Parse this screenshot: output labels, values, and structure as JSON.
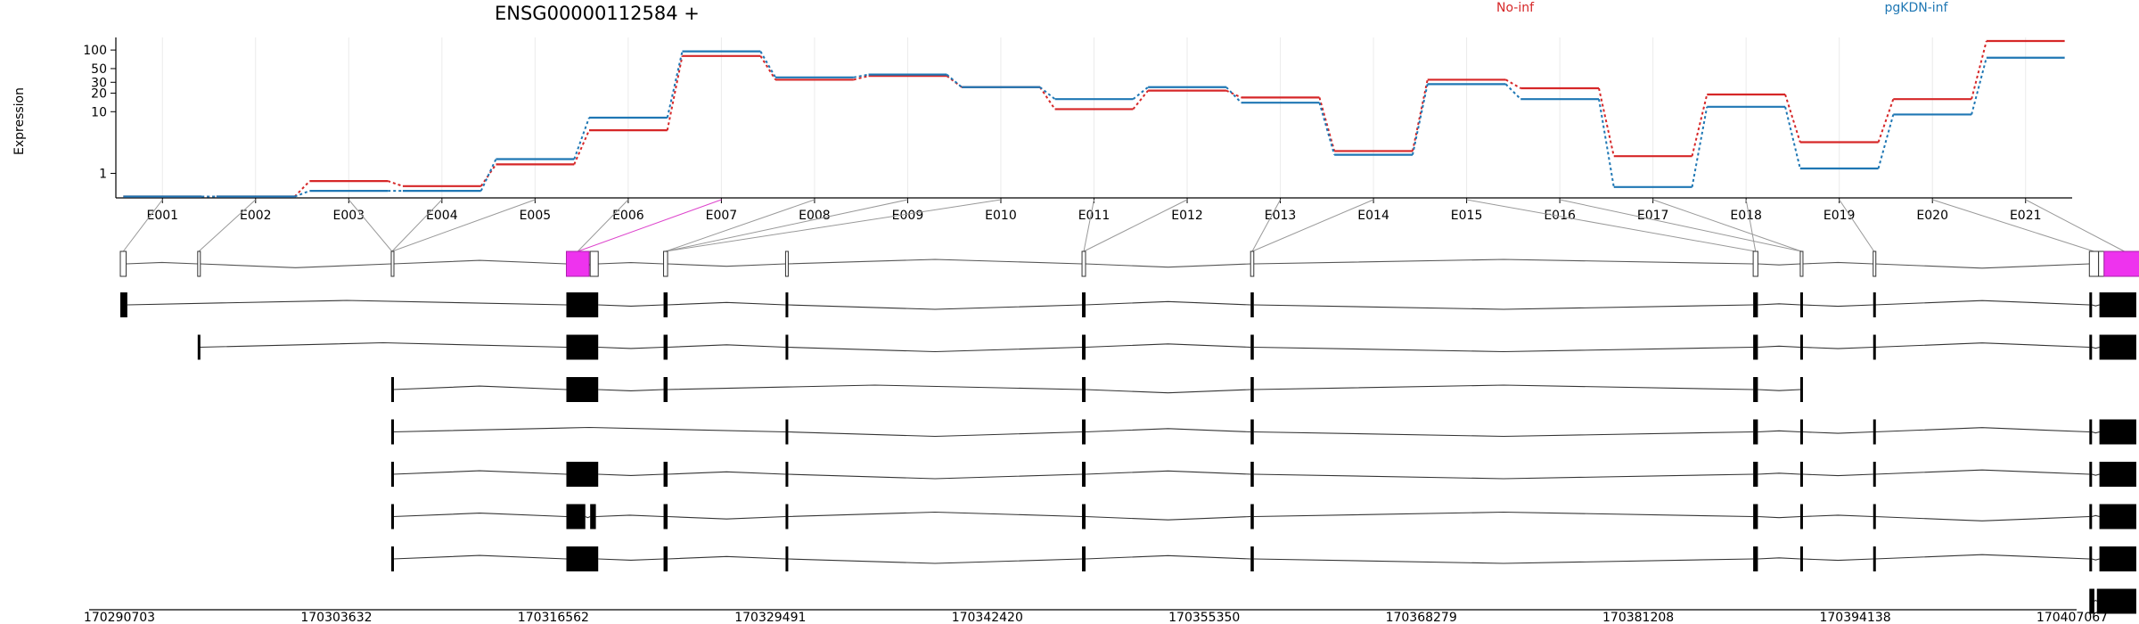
{
  "chart_data": {
    "type": "line",
    "title": "ENSG00000112584 +",
    "ylabel": "Expression",
    "yscale": "log",
    "ylim": [
      0.4,
      160
    ],
    "yticks": [
      1,
      10,
      20,
      30,
      50,
      100
    ],
    "grid": "x",
    "legend_placement": "top",
    "categories": [
      "E001",
      "E002",
      "E003",
      "E004",
      "E005",
      "E006",
      "E007",
      "E008",
      "E009",
      "E010",
      "E011",
      "E012",
      "E013",
      "E014",
      "E015",
      "E016",
      "E017",
      "E018",
      "E019",
      "E020",
      "E021"
    ],
    "series": [
      {
        "name": "No-inf",
        "color": "#d62728",
        "values": [
          0.42,
          0.42,
          0.75,
          0.62,
          1.4,
          5.0,
          80,
          33,
          38,
          25,
          11,
          22,
          17,
          2.3,
          33,
          24,
          1.9,
          19,
          3.2,
          16,
          140
        ]
      },
      {
        "name": "pgKDN-inf",
        "color": "#1f77b4",
        "values": [
          0.42,
          0.42,
          0.52,
          0.52,
          1.7,
          8.0,
          95,
          36,
          40,
          25,
          16,
          25,
          14,
          2.0,
          28,
          16,
          0.6,
          12,
          1.2,
          9,
          75
        ]
      }
    ],
    "genomic_axis": {
      "ticks": [
        "170290703",
        "170303632",
        "170316562",
        "170329491",
        "170342420",
        "170355350",
        "170368279",
        "170381208",
        "170394138",
        "170407067"
      ],
      "start": 170290703,
      "end": 170407067
    },
    "exon_bins": [
      [
        170290703,
        170291050
      ],
      [
        170295320,
        170295450
      ],
      [
        170306870,
        170306960
      ],
      [
        170317320,
        170318680
      ],
      [
        170318740,
        170319220
      ],
      [
        170323120,
        170323360
      ],
      [
        170330400,
        170330550
      ],
      [
        170348090,
        170348300
      ],
      [
        170358150,
        170358340
      ],
      [
        170388140,
        170388420
      ],
      [
        170390950,
        170391100
      ],
      [
        170395300,
        170395400
      ],
      [
        170408200,
        170408750
      ],
      [
        170408750,
        170409080
      ],
      [
        170409080,
        170411500
      ]
    ],
    "highlighted_exon_bins": [
      3,
      14
    ],
    "exon_bin_links": [
      [
        0,
        0
      ],
      [
        1,
        1
      ],
      [
        2,
        2
      ],
      [
        3,
        2
      ],
      [
        4,
        2
      ],
      [
        5,
        3
      ],
      [
        6,
        3
      ],
      [
        7,
        5
      ],
      [
        8,
        5
      ],
      [
        9,
        5
      ],
      [
        10,
        7
      ],
      [
        11,
        7
      ],
      [
        12,
        8
      ],
      [
        13,
        8
      ],
      [
        14,
        9
      ],
      [
        15,
        10
      ],
      [
        16,
        10
      ],
      [
        17,
        9
      ],
      [
        18,
        11
      ],
      [
        19,
        12
      ],
      [
        20,
        14
      ]
    ],
    "transcripts": [
      {
        "exons": [
          [
            170290703,
            170291120
          ],
          [
            170317320,
            170319220
          ],
          [
            170323120,
            170323360
          ],
          [
            170330400,
            170330550
          ],
          [
            170348090,
            170348300
          ],
          [
            170358150,
            170358340
          ],
          [
            170388140,
            170388420
          ],
          [
            170390950,
            170391100
          ],
          [
            170395300,
            170395400
          ],
          [
            170408200,
            170408350
          ],
          [
            170408800,
            170411000
          ]
        ]
      },
      {
        "exons": [
          [
            170295320,
            170295450
          ],
          [
            170317320,
            170319220
          ],
          [
            170323120,
            170323360
          ],
          [
            170330400,
            170330550
          ],
          [
            170348090,
            170348300
          ],
          [
            170358150,
            170358340
          ],
          [
            170388140,
            170388420
          ],
          [
            170390950,
            170391100
          ],
          [
            170395300,
            170395400
          ],
          [
            170408200,
            170408350
          ],
          [
            170408800,
            170411000
          ]
        ]
      },
      {
        "exons": [
          [
            170306870,
            170306960
          ],
          [
            170317320,
            170319220
          ],
          [
            170323120,
            170323360
          ],
          [
            170348090,
            170348300
          ],
          [
            170358150,
            170358340
          ],
          [
            170388140,
            170388420
          ],
          [
            170390950,
            170391100
          ]
        ]
      },
      {
        "exons": [
          [
            170306870,
            170306960
          ],
          [
            170330400,
            170330550
          ],
          [
            170348090,
            170348300
          ],
          [
            170358150,
            170358340
          ],
          [
            170388140,
            170388420
          ],
          [
            170390950,
            170391100
          ],
          [
            170395300,
            170395400
          ],
          [
            170408200,
            170408350
          ],
          [
            170408800,
            170411000
          ]
        ]
      },
      {
        "exons": [
          [
            170306870,
            170306960
          ],
          [
            170317320,
            170319220
          ],
          [
            170323120,
            170323360
          ],
          [
            170330400,
            170330550
          ],
          [
            170348090,
            170348300
          ],
          [
            170358150,
            170358340
          ],
          [
            170388140,
            170388420
          ],
          [
            170390950,
            170391100
          ],
          [
            170395300,
            170395400
          ],
          [
            170408200,
            170408350
          ],
          [
            170408800,
            170411000
          ]
        ]
      },
      {
        "exons": [
          [
            170306870,
            170306960
          ],
          [
            170317320,
            170318450
          ],
          [
            170318740,
            170319080
          ],
          [
            170323120,
            170323360
          ],
          [
            170330400,
            170330550
          ],
          [
            170348090,
            170348300
          ],
          [
            170358150,
            170358340
          ],
          [
            170388140,
            170388420
          ],
          [
            170390950,
            170391100
          ],
          [
            170395300,
            170395400
          ],
          [
            170408200,
            170408350
          ],
          [
            170408800,
            170411000
          ]
        ]
      },
      {
        "exons": [
          [
            170306870,
            170306960
          ],
          [
            170317320,
            170319220
          ],
          [
            170323120,
            170323360
          ],
          [
            170330400,
            170330550
          ],
          [
            170348090,
            170348300
          ],
          [
            170358150,
            170358340
          ],
          [
            170388140,
            170388420
          ],
          [
            170390950,
            170391100
          ],
          [
            170395300,
            170395400
          ],
          [
            170408200,
            170408350
          ],
          [
            170408800,
            170411000
          ]
        ]
      },
      {
        "exons": [
          [
            170408200,
            170408500
          ],
          [
            170408650,
            170411000
          ]
        ]
      }
    ]
  }
}
